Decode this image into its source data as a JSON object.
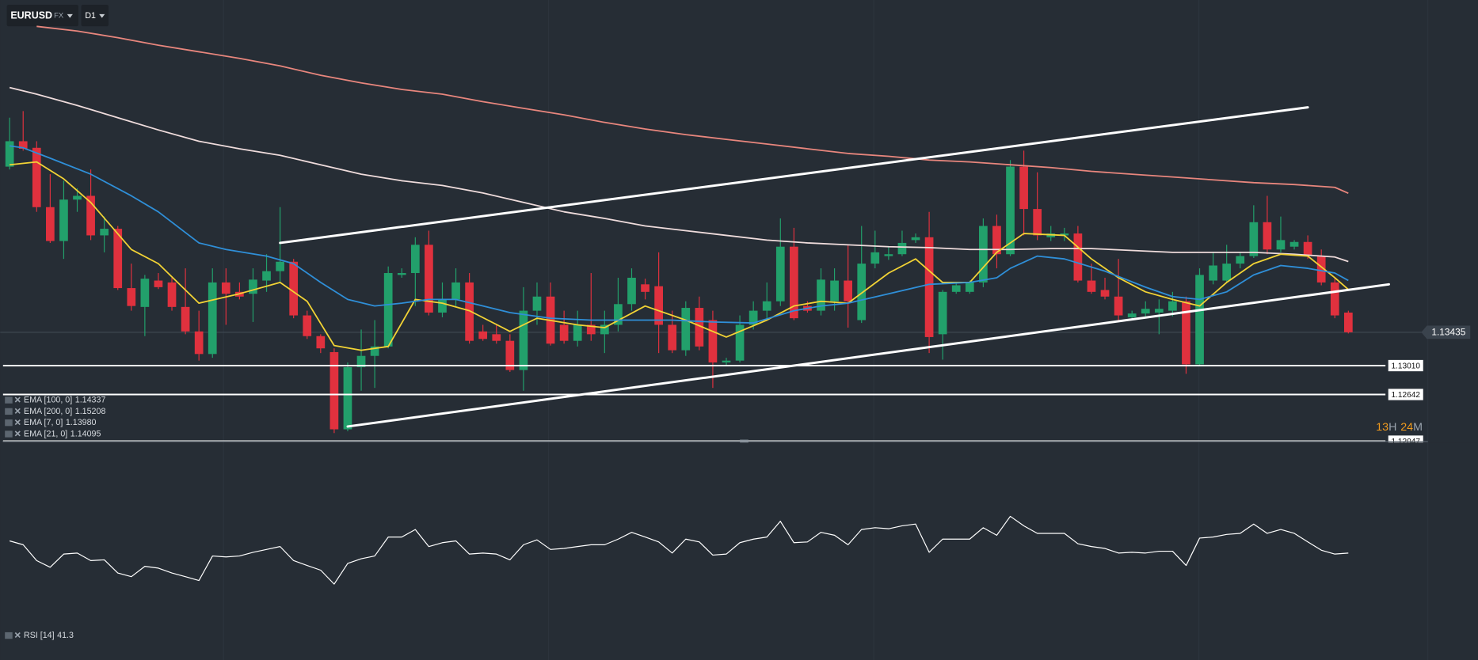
{
  "toolbar": {
    "symbol": "EURUSD",
    "market": "FX",
    "timeframe": "D1"
  },
  "countdown": {
    "hours": 13,
    "hours_unit": "H",
    "minutes": 24,
    "minutes_unit": "M"
  },
  "chart_data": [
    {
      "type": "candlestick",
      "ylim": [
        1.12054,
        1.1767
      ],
      "up_color": "#22a06b",
      "down_color": "#e0313e",
      "ohlc": [
        [
          1.15546,
          1.1617,
          1.1551,
          1.1587
        ],
        [
          1.1587,
          1.16254,
          1.1575,
          1.15774
        ],
        [
          1.15786,
          1.1587,
          1.1497,
          1.1503
        ],
        [
          1.1503,
          1.1545,
          1.14574,
          1.14598
        ],
        [
          1.14598,
          1.15366,
          1.1437,
          1.15126
        ],
        [
          1.15126,
          1.1527,
          1.1497,
          1.15174
        ],
        [
          1.15174,
          1.1551,
          1.1461,
          1.1467
        ],
        [
          1.1467,
          1.1491,
          1.14454,
          1.14754
        ],
        [
          1.14754,
          1.1479,
          1.13974,
          1.13998
        ],
        [
          1.13998,
          1.1431,
          1.1371,
          1.1377
        ],
        [
          1.13758,
          1.14166,
          1.13386,
          1.14118
        ],
        [
          1.14094,
          1.1419,
          1.13986,
          1.1401
        ],
        [
          1.1407,
          1.1413,
          1.1371,
          1.13758
        ],
        [
          1.13758,
          1.1425,
          1.1341,
          1.13446
        ],
        [
          1.13446,
          1.1371,
          1.13074,
          1.13158
        ],
        [
          1.13158,
          1.1425,
          1.1311,
          1.1407
        ],
        [
          1.1407,
          1.1425,
          1.1353,
          1.13926
        ],
        [
          1.1395,
          1.1407,
          1.13854,
          1.1389
        ],
        [
          1.13926,
          1.1425,
          1.13566,
          1.14106
        ],
        [
          1.14094,
          1.1443,
          1.1395,
          1.14214
        ],
        [
          1.14214,
          1.1503,
          1.1407,
          1.14334
        ],
        [
          1.14334,
          1.1437,
          1.13614,
          1.1365
        ],
        [
          1.1365,
          1.1371,
          1.1335,
          1.13386
        ],
        [
          1.13386,
          1.1341,
          1.1317,
          1.1323
        ],
        [
          1.13182,
          1.1323,
          1.1215,
          1.12198
        ],
        [
          1.12198,
          1.1305,
          1.12174,
          1.1299
        ],
        [
          1.1299,
          1.1347,
          1.1269,
          1.13134
        ],
        [
          1.13134,
          1.1359,
          1.12726,
          1.13254
        ],
        [
          1.13254,
          1.14274,
          1.1323,
          1.1419
        ],
        [
          1.14166,
          1.1425,
          1.1413,
          1.1419
        ],
        [
          1.1419,
          1.14646,
          1.1377,
          1.1455
        ],
        [
          1.1455,
          1.1473,
          1.1365,
          1.13686
        ],
        [
          1.13686,
          1.1407,
          1.13626,
          1.13854
        ],
        [
          1.13854,
          1.1425,
          1.1377,
          1.1407
        ],
        [
          1.1407,
          1.1419,
          1.1329,
          1.13326
        ],
        [
          1.13446,
          1.1353,
          1.13326,
          1.1335
        ],
        [
          1.1341,
          1.1353,
          1.1329,
          1.13326
        ],
        [
          1.13326,
          1.1341,
          1.1293,
          1.12954
        ],
        [
          1.12954,
          1.1401,
          1.1269,
          1.1371
        ],
        [
          1.1371,
          1.1407,
          1.1353,
          1.1389
        ],
        [
          1.1389,
          1.1407,
          1.13266,
          1.1329
        ],
        [
          1.1353,
          1.1371,
          1.1329,
          1.13326
        ],
        [
          1.13326,
          1.1371,
          1.13254,
          1.1353
        ],
        [
          1.1353,
          1.1419,
          1.13326,
          1.1341
        ],
        [
          1.1341,
          1.1371,
          1.1317,
          1.1353
        ],
        [
          1.1353,
          1.1413,
          1.13446,
          1.13794
        ],
        [
          1.13794,
          1.1425,
          1.1371,
          1.1413
        ],
        [
          1.14046,
          1.14118,
          1.13854,
          1.1395
        ],
        [
          1.14022,
          1.14454,
          1.1317,
          1.1353
        ],
        [
          1.1353,
          1.1371,
          1.1317,
          1.13206
        ],
        [
          1.13206,
          1.1383,
          1.13134,
          1.13746
        ],
        [
          1.13746,
          1.1389,
          1.13206,
          1.13254
        ],
        [
          1.1359,
          1.1371,
          1.12726,
          1.1305
        ],
        [
          1.1305,
          1.1311,
          1.13014,
          1.13074
        ],
        [
          1.13074,
          1.1365,
          1.1305,
          1.1353
        ],
        [
          1.1353,
          1.1383,
          1.1347,
          1.1371
        ],
        [
          1.1371,
          1.1407,
          1.1359,
          1.1383
        ],
        [
          1.1383,
          1.14886,
          1.1377,
          1.14526
        ],
        [
          1.14526,
          1.14766,
          1.1359,
          1.13614
        ],
        [
          1.1377,
          1.1383,
          1.13686,
          1.1371
        ],
        [
          1.1371,
          1.1425,
          1.1365,
          1.14106
        ],
        [
          1.1383,
          1.1425,
          1.1371,
          1.14094
        ],
        [
          1.14094,
          1.1455,
          1.13494,
          1.1383
        ],
        [
          1.1359,
          1.1479,
          1.13554,
          1.1431
        ],
        [
          1.1431,
          1.1473,
          1.1425,
          1.14454
        ],
        [
          1.14406,
          1.14526,
          1.14358,
          1.1443
        ],
        [
          1.1443,
          1.1473,
          1.14406,
          1.14574
        ],
        [
          1.1461,
          1.14694,
          1.14574,
          1.14646
        ],
        [
          1.14646,
          1.1497,
          1.1317,
          1.13374
        ],
        [
          1.1341,
          1.13974,
          1.13086,
          1.1395
        ],
        [
          1.1395,
          1.1407,
          1.13926,
          1.14034
        ],
        [
          1.1395,
          1.14094,
          1.13926,
          1.1407
        ],
        [
          1.1407,
          1.14886,
          1.1401,
          1.1479
        ],
        [
          1.1479,
          1.14934,
          1.1425,
          1.1443
        ],
        [
          1.1443,
          1.1563,
          1.14406,
          1.15546
        ],
        [
          1.15546,
          1.1575,
          1.1467,
          1.15006
        ],
        [
          1.15006,
          1.15474,
          1.1461,
          1.1467
        ],
        [
          1.14646,
          1.1479,
          1.14598,
          1.14694
        ],
        [
          1.1467,
          1.14766,
          1.14598,
          1.14694
        ],
        [
          1.14694,
          1.1479,
          1.1407,
          1.14094
        ],
        [
          1.14094,
          1.1431,
          1.13926,
          1.1395
        ],
        [
          1.13974,
          1.1413,
          1.13854,
          1.1389
        ],
        [
          1.1389,
          1.1437,
          1.1359,
          1.1365
        ],
        [
          1.13626,
          1.1371,
          1.1359,
          1.13674
        ],
        [
          1.13674,
          1.1383,
          1.13638,
          1.13734
        ],
        [
          1.13686,
          1.13854,
          1.1341,
          1.13734
        ],
        [
          1.1371,
          1.1395,
          1.13638,
          1.1383
        ],
        [
          1.1383,
          1.1389,
          1.12906,
          1.13026
        ],
        [
          1.13026,
          1.1425,
          1.13002,
          1.14166
        ],
        [
          1.14094,
          1.14454,
          1.14046,
          1.14286
        ],
        [
          1.14094,
          1.1455,
          1.1407,
          1.1431
        ],
        [
          1.1431,
          1.14454,
          1.1425,
          1.14406
        ],
        [
          1.14406,
          1.15054,
          1.14382,
          1.14838
        ],
        [
          1.14838,
          1.15174,
          1.1443,
          1.1449
        ],
        [
          1.1449,
          1.1491,
          1.14454,
          1.1461
        ],
        [
          1.14526,
          1.1461,
          1.1449,
          1.14586
        ],
        [
          1.14586,
          1.1467,
          1.1437,
          1.14406
        ],
        [
          1.14406,
          1.1449,
          1.14034,
          1.1407
        ],
        [
          1.1407,
          1.1413,
          1.13614,
          1.1365
        ],
        [
          1.13686,
          1.1371,
          1.1342,
          1.13435
        ]
      ],
      "series": [
        {
          "name": "EMA [100, 0]",
          "color": "#efdcdc",
          "value_label": "1.14337",
          "x": [
            0,
            2,
            5,
            8,
            11,
            14,
            17,
            20,
            23,
            26,
            29,
            32,
            35,
            38,
            41,
            44,
            47,
            50,
            53,
            56,
            59,
            62,
            65,
            68,
            71,
            74,
            77,
            80,
            83,
            86,
            89,
            92,
            95,
            98,
            99
          ],
          "values": [
            1.16554,
            1.1647,
            1.16326,
            1.1617,
            1.16014,
            1.1587,
            1.15774,
            1.1569,
            1.1557,
            1.1545,
            1.15366,
            1.15306,
            1.1521,
            1.1509,
            1.1497,
            1.14886,
            1.1479,
            1.1473,
            1.1467,
            1.1461,
            1.14574,
            1.1455,
            1.14526,
            1.14514,
            1.1449,
            1.1449,
            1.14502,
            1.14502,
            1.14478,
            1.14454,
            1.14454,
            1.14454,
            1.1443,
            1.14394,
            1.14337
          ]
        },
        {
          "name": "EMA [200, 0]",
          "color": "#e8867d",
          "value_label": "1.15208",
          "x": [
            2,
            5,
            8,
            11,
            14,
            17,
            20,
            23,
            26,
            29,
            32,
            35,
            38,
            41,
            44,
            47,
            50,
            53,
            56,
            59,
            62,
            65,
            68,
            71,
            74,
            77,
            80,
            83,
            86,
            89,
            92,
            95,
            98,
            99
          ],
          "values": [
            1.17334,
            1.17274,
            1.1719,
            1.17094,
            1.1701,
            1.16926,
            1.1683,
            1.1671,
            1.16614,
            1.1653,
            1.1647,
            1.16374,
            1.1629,
            1.16206,
            1.1611,
            1.16026,
            1.15954,
            1.15894,
            1.15834,
            1.15774,
            1.15714,
            1.15678,
            1.1563,
            1.15606,
            1.1557,
            1.15534,
            1.15486,
            1.1545,
            1.15414,
            1.15378,
            1.15342,
            1.15318,
            1.15282,
            1.15208
          ]
        },
        {
          "name": "EMA [7, 0]",
          "color": "#f2d335",
          "value_label": "1.13980",
          "x": [
            0,
            2,
            4,
            6,
            9,
            11,
            14,
            17,
            20,
            22,
            24,
            26,
            28,
            30,
            32,
            34,
            37,
            39,
            42,
            44,
            47,
            50,
            53,
            56,
            58,
            60,
            62,
            65,
            67,
            69,
            71,
            73,
            75,
            78,
            80,
            82,
            84,
            86,
            88,
            90,
            92,
            94,
            96,
            98,
            99
          ],
          "values": [
            1.1557,
            1.15606,
            1.1539,
            1.1509,
            1.1449,
            1.1431,
            1.13806,
            1.13926,
            1.1407,
            1.1383,
            1.13266,
            1.13206,
            1.13254,
            1.13854,
            1.13806,
            1.1371,
            1.13446,
            1.13614,
            1.1353,
            1.13494,
            1.1377,
            1.1359,
            1.13374,
            1.1359,
            1.1377,
            1.1383,
            1.13806,
            1.1419,
            1.1437,
            1.1407,
            1.1407,
            1.14454,
            1.14694,
            1.1467,
            1.1437,
            1.1413,
            1.1395,
            1.13854,
            1.1377,
            1.1407,
            1.1431,
            1.1443,
            1.14406,
            1.1413,
            1.1398
          ]
        },
        {
          "name": "EMA [21, 0]",
          "color": "#2f8fd8",
          "value_label": "1.14095",
          "x": [
            0,
            1,
            3,
            6,
            9,
            11,
            14,
            16,
            19,
            21,
            23,
            25,
            27,
            29,
            31,
            33,
            35,
            37,
            40,
            43,
            46,
            49,
            52,
            55,
            58,
            60,
            62,
            65,
            68,
            71,
            73,
            74,
            76,
            78,
            81,
            84,
            86,
            88,
            90,
            92,
            94,
            96,
            98,
            99
          ],
          "values": [
            1.1581,
            1.15786,
            1.15654,
            1.1545,
            1.15174,
            1.1497,
            1.14574,
            1.1449,
            1.14406,
            1.1431,
            1.1407,
            1.13854,
            1.1377,
            1.13806,
            1.13854,
            1.13854,
            1.1377,
            1.13686,
            1.13614,
            1.1359,
            1.1359,
            1.1359,
            1.13566,
            1.13554,
            1.1371,
            1.1377,
            1.13806,
            1.13926,
            1.14046,
            1.1407,
            1.1413,
            1.1425,
            1.14406,
            1.1437,
            1.14214,
            1.1401,
            1.1389,
            1.13854,
            1.1395,
            1.14166,
            1.14286,
            1.1425,
            1.1419,
            1.14095
          ]
        }
      ],
      "trendlines": [
        {
          "x": [
            20,
            96
          ],
          "values": [
            1.14574,
            1.16302
          ]
        },
        {
          "x": [
            25,
            102
          ],
          "values": [
            1.12234,
            1.14046
          ]
        }
      ],
      "levels": [
        {
          "value": 1.1301,
          "label": "1.13010"
        },
        1.12642,
        1.12047
      ]
    },
    {
      "type": "line",
      "ylim": [
        0,
        84
      ],
      "series": [
        {
          "name": "RSI [14]",
          "color": "#ffffff",
          "values": [
            46.0,
            44.5,
            38.4,
            35.8,
            40.9,
            41.3,
            38.4,
            38.7,
            33.6,
            32.2,
            36.2,
            35.5,
            33.6,
            32.2,
            30.7,
            40.2,
            39.8,
            40.2,
            41.6,
            42.7,
            43.8,
            38.4,
            36.5,
            34.7,
            29.3,
            37.3,
            39.1,
            40.2,
            47.5,
            47.5,
            50.4,
            43.8,
            45.3,
            46.0,
            40.9,
            41.3,
            40.9,
            38.7,
            44.5,
            46.4,
            42.7,
            43.1,
            43.8,
            44.5,
            44.5,
            46.7,
            49.3,
            47.5,
            45.6,
            41.3,
            46.7,
            45.6,
            40.5,
            40.9,
            45.3,
            46.7,
            47.5,
            53.6,
            45.3,
            45.6,
            49.3,
            48.2,
            44.5,
            50.4,
            51.1,
            50.7,
            51.8,
            52.5,
            41.6,
            46.7,
            46.7,
            46.7,
            51.1,
            48.2,
            55.5,
            51.8,
            48.9,
            48.9,
            48.9,
            44.9,
            43.8,
            43.1,
            41.3,
            41.6,
            41.3,
            42.0,
            42.0,
            36.5,
            47.1,
            47.5,
            48.5,
            48.9,
            52.5,
            48.9,
            50.4,
            48.9,
            45.6,
            42.4,
            40.9,
            41.3
          ]
        }
      ]
    }
  ]
}
